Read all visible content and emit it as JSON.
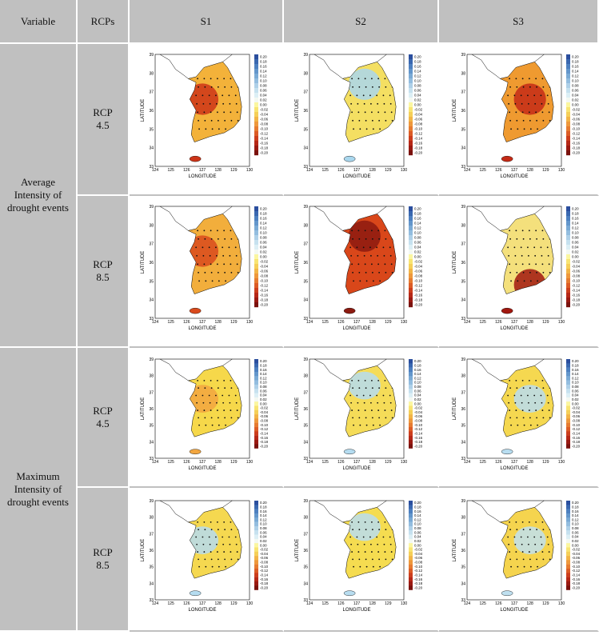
{
  "header": {
    "variable": "Variable",
    "rcps": "RCPs",
    "scenarios": [
      "S1",
      "S2",
      "S3"
    ]
  },
  "map_axes": {
    "xlabel": "LONGITUDE",
    "ylabel": "LATITUDE",
    "xticks": [
      "124",
      "125",
      "126",
      "127",
      "128",
      "129",
      "130"
    ],
    "yticks": [
      "39",
      "38",
      "37",
      "36",
      "35",
      "34",
      "33"
    ],
    "colorbar_ticks": [
      "0.20",
      "0.18",
      "0.16",
      "0.14",
      "0.12",
      "0.10",
      "0.08",
      "0.06",
      "0.04",
      "0.02",
      "0.00",
      "-0.02",
      "-0.04",
      "-0.06",
      "-0.08",
      "-0.10",
      "-0.12",
      "-0.14",
      "-0.16",
      "-0.18",
      "-0.20"
    ]
  },
  "rows": [
    {
      "variable": "Average Intensity of drought events",
      "groups": [
        {
          "rcp": "RCP 4.5",
          "maps": [
            {
              "color": "#f3b23a",
              "accent": "#cc3418"
            },
            {
              "color": "#f4df62",
              "accent": "#a9d7ee"
            },
            {
              "color": "#ef9a30",
              "accent": "#c42a16"
            }
          ]
        },
        {
          "rcp": "RCP 8.5",
          "maps": [
            {
              "color": "#f2ae3c",
              "accent": "#d94a1c"
            },
            {
              "color": "#d9471a",
              "accent": "#8c1a10"
            },
            {
              "color": "#f4e07c",
              "accent": "#a1170f"
            }
          ]
        }
      ]
    },
    {
      "variable": "Maximum Intensity of drought events",
      "groups": [
        {
          "rcp": "RCP 4.5",
          "maps": [
            {
              "color": "#f6d84a",
              "accent": "#f2a640"
            },
            {
              "color": "#f5dc58",
              "accent": "#b5dcf0"
            },
            {
              "color": "#f5d850",
              "accent": "#b8ddf0"
            }
          ]
        },
        {
          "rcp": "RCP 8.5",
          "maps": [
            {
              "color": "#f5d850",
              "accent": "#b5dcf0"
            },
            {
              "color": "#f5dc50",
              "accent": "#b8ddf0"
            },
            {
              "color": "#f5d44e",
              "accent": "#bfe0f0"
            }
          ]
        }
      ]
    }
  ]
}
